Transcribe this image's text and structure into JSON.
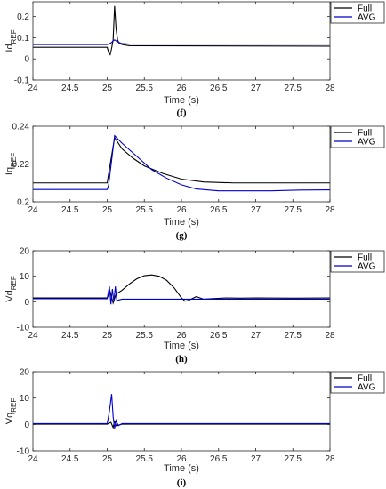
{
  "colors": {
    "Full": "#000000",
    "AVG": "#0000cc"
  },
  "chart_data": [
    {
      "type": "line",
      "ylabel": "Id",
      "ylabel_sub": "REF",
      "xlabel": "Time (s)",
      "panel_label": "(f)",
      "xlim": [
        24,
        28
      ],
      "ylim": [
        -0.1,
        0.27
      ],
      "xticks": [
        "24",
        "24.5",
        "25",
        "25.5",
        "26",
        "26.5",
        "27",
        "27.5",
        "28"
      ],
      "yticks": [
        "-0.1",
        "0",
        "0.1",
        "0.2"
      ],
      "ytick_values": [
        -0.1,
        0,
        0.1,
        0.2
      ],
      "legend_position": "top-right",
      "series": [
        {
          "name": "Full",
          "x": [
            24,
            25.0,
            25.02,
            25.04,
            25.06,
            25.08,
            25.1,
            25.12,
            25.14,
            25.16,
            25.2,
            25.3,
            28
          ],
          "y": [
            0.055,
            0.055,
            0.03,
            0.02,
            0.05,
            0.09,
            0.25,
            0.14,
            0.09,
            0.075,
            0.068,
            0.062,
            0.06
          ]
        },
        {
          "name": "AVG",
          "x": [
            24,
            25.0,
            25.05,
            25.08,
            25.1,
            25.14,
            25.2,
            25.3,
            28
          ],
          "y": [
            0.068,
            0.068,
            0.075,
            0.085,
            0.09,
            0.08,
            0.072,
            0.07,
            0.07
          ]
        }
      ]
    },
    {
      "type": "line",
      "ylabel": "Iq",
      "ylabel_sub": "REF",
      "xlabel": "Time (s)",
      "panel_label": "(g)",
      "xlim": [
        24,
        28
      ],
      "ylim": [
        0.2,
        0.24
      ],
      "xticks": [
        "24",
        "24.5",
        "25",
        "25.5",
        "26",
        "26.5",
        "27",
        "27.5",
        "28"
      ],
      "yticks": [
        "0.2",
        "0.22",
        "0.24"
      ],
      "ytick_values": [
        0.2,
        0.22,
        0.24
      ],
      "legend_position": "top-right",
      "series": [
        {
          "name": "Full",
          "x": [
            24,
            25.0,
            25.02,
            25.1,
            25.2,
            25.35,
            25.5,
            25.75,
            26.0,
            26.3,
            26.7,
            27.2,
            28
          ],
          "y": [
            0.21,
            0.21,
            0.215,
            0.234,
            0.228,
            0.223,
            0.219,
            0.215,
            0.212,
            0.2105,
            0.21,
            0.21,
            0.21
          ]
        },
        {
          "name": "AVG",
          "x": [
            24,
            25.0,
            25.02,
            25.1,
            25.2,
            25.4,
            25.6,
            25.8,
            26.0,
            26.2,
            26.5,
            26.8,
            27.2,
            27.6,
            28
          ],
          "y": [
            0.2065,
            0.2065,
            0.209,
            0.235,
            0.231,
            0.224,
            0.217,
            0.2125,
            0.209,
            0.2068,
            0.2058,
            0.2058,
            0.2058,
            0.2062,
            0.2063
          ]
        }
      ]
    },
    {
      "type": "line",
      "ylabel": "Vd",
      "ylabel_sub": "REF",
      "xlabel": "Time (s)",
      "panel_label": "(h)",
      "xlim": [
        24,
        28
      ],
      "ylim": [
        -10,
        20
      ],
      "xticks": [
        "24",
        "24.5",
        "25",
        "25.5",
        "26",
        "26.5",
        "27",
        "27.5",
        "28"
      ],
      "yticks": [
        "-10",
        "0",
        "10",
        "20"
      ],
      "ytick_values": [
        -10,
        0,
        10,
        20
      ],
      "legend_position": "top-right",
      "series": [
        {
          "name": "Full",
          "x": [
            24,
            25.0,
            25.04,
            25.08,
            25.12,
            25.2,
            25.3,
            25.4,
            25.5,
            25.6,
            25.7,
            25.8,
            25.9,
            26.0,
            26.05,
            26.1,
            26.2,
            26.3,
            26.4,
            26.6,
            26.8,
            27.0,
            27.5,
            28
          ],
          "y": [
            1.5,
            1.5,
            4,
            -0.5,
            3,
            4.5,
            7,
            9,
            10.2,
            10.5,
            10,
            8.4,
            5.5,
            1.5,
            0.2,
            0.6,
            2.0,
            1.0,
            1.2,
            1.5,
            1.4,
            1.5,
            1.4,
            1.5
          ]
        },
        {
          "name": "AVG",
          "x": [
            24,
            25.0,
            25.03,
            25.05,
            25.07,
            25.09,
            25.11,
            25.13,
            25.2,
            28
          ],
          "y": [
            1.2,
            1.2,
            6,
            -1,
            5,
            0,
            6,
            0.5,
            1.0,
            1.0
          ]
        }
      ]
    },
    {
      "type": "line",
      "ylabel": "Vq",
      "ylabel_sub": "REF",
      "xlabel": "Time (s)",
      "panel_label": "(i)",
      "xlim": [
        24,
        28
      ],
      "ylim": [
        -10,
        20
      ],
      "xticks": [
        "24",
        "24.5",
        "25",
        "25.5",
        "26",
        "26.5",
        "27",
        "27.5",
        "28"
      ],
      "yticks": [
        "-10",
        "0",
        "10",
        "20"
      ],
      "ytick_values": [
        -10,
        0,
        10,
        20
      ],
      "legend_position": "top-right",
      "series": [
        {
          "name": "Full",
          "x": [
            24,
            25.0,
            25.05,
            25.08,
            25.1,
            25.12,
            25.2,
            28
          ],
          "y": [
            0.1,
            0.1,
            0.8,
            -1.2,
            1.5,
            -0.5,
            0.1,
            0.1
          ]
        },
        {
          "name": "AVG",
          "x": [
            24,
            25.0,
            25.03,
            25.06,
            25.08,
            25.1,
            25.12,
            25.15,
            25.2,
            28
          ],
          "y": [
            0.3,
            0.3,
            5,
            11.5,
            3,
            -1.5,
            1.5,
            -0.5,
            0.3,
            0.3
          ]
        }
      ]
    }
  ]
}
